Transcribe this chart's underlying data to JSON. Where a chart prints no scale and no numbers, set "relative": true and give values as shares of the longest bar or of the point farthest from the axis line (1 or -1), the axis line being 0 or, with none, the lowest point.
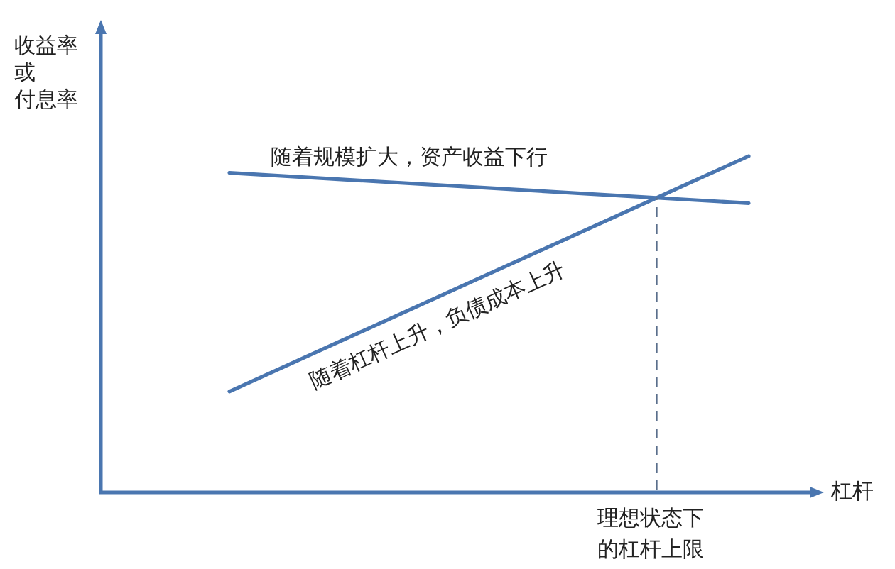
{
  "chart_data": {
    "type": "line",
    "relative": true,
    "categories": [
      null,
      null
    ],
    "ylabel": "收益率或付息率",
    "xlabel": "杠杆",
    "series": [
      {
        "name": "随着规模扩大，资产收益下行",
        "color": "#4a76b0",
        "values": [
          0.95,
          0.86
        ]
      },
      {
        "name": "随着杠杆上升，负债成本上升",
        "color": "#4a76b0",
        "values": [
          0.3,
          1
        ]
      }
    ],
    "annotations": [
      "理想状态下的杠杆上限"
    ],
    "line_style": "solid"
  }
}
